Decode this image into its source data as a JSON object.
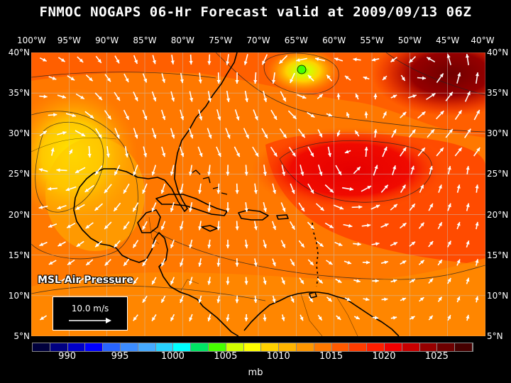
{
  "title": "FNMOC NOGAPS 06-Hr Forecast valid at 2009/09/13 06Z",
  "inset_title": "MSL Air Pressure",
  "vector_key": {
    "label": "10.0 m/s"
  },
  "lon_labels": [
    "100°W",
    "95°W",
    "90°W",
    "85°W",
    "80°W",
    "75°W",
    "70°W",
    "65°W",
    "60°W",
    "55°W",
    "50°W",
    "45°W",
    "40°W"
  ],
  "lat_labels": [
    "40°N",
    "35°N",
    "30°N",
    "25°N",
    "20°N",
    "15°N",
    "10°N",
    "5°N"
  ],
  "colorbar": {
    "unit": "mb",
    "colors": [
      "#00003c",
      "#000082",
      "#0000c8",
      "#0000ff",
      "#2864ff",
      "#3c8cff",
      "#46aaff",
      "#28d2ff",
      "#00ffff",
      "#00e664",
      "#46ff00",
      "#d2ff00",
      "#ffff00",
      "#ffd200",
      "#ffb400",
      "#ff9600",
      "#ff7800",
      "#ff5a00",
      "#ff3c00",
      "#ff1e00",
      "#f00000",
      "#c80000",
      "#960000",
      "#6e0000",
      "#460000"
    ],
    "labels": [
      {
        "text": "990",
        "value": 990
      },
      {
        "text": "995",
        "value": 995
      },
      {
        "text": "1000",
        "value": 1000
      },
      {
        "text": "1005",
        "value": 1005
      },
      {
        "text": "1010",
        "value": 1010
      },
      {
        "text": "1015",
        "value": 1015
      },
      {
        "text": "1020",
        "value": 1020
      },
      {
        "text": "1025",
        "value": 1025
      }
    ]
  },
  "map": {
    "lon_range": [
      -100,
      -40
    ],
    "lat_range": [
      5,
      40
    ],
    "gridline_color": "#c8c8c8",
    "pressure_highs": [
      {
        "lon": -65,
        "lat": 36.5,
        "value_mb": 1013
      },
      {
        "lon": -58,
        "lat": 26,
        "value_mb": 1018
      },
      {
        "lon": -47,
        "lat": 38.5,
        "value_mb": 1022
      }
    ],
    "pressure_lows": [
      {
        "lon": -94,
        "lat": 28,
        "value_mb": 1010
      }
    ]
  }
}
